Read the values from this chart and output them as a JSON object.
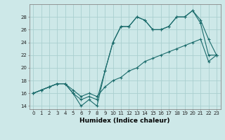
{
  "title": "",
  "xlabel": "Humidex (Indice chaleur)",
  "background_color": "#cde8e8",
  "grid_color": "#aacfcf",
  "line_color": "#1a6b6b",
  "hours": [
    0,
    1,
    2,
    3,
    4,
    5,
    6,
    7,
    8,
    9,
    10,
    11,
    12,
    13,
    14,
    15,
    16,
    17,
    18,
    19,
    20,
    21,
    22,
    23
  ],
  "series1": [
    16,
    16.5,
    17,
    17.5,
    17.5,
    16,
    14,
    15,
    14,
    19.5,
    24,
    26.5,
    26.5,
    28,
    27.5,
    26,
    26,
    26.5,
    28,
    28,
    29,
    27,
    22,
    22
  ],
  "series2": [
    16,
    16.5,
    17,
    17.5,
    17.5,
    16,
    15,
    15.5,
    15,
    19.5,
    24,
    26.5,
    26.5,
    28,
    27.5,
    26,
    26,
    26.5,
    28,
    28,
    29,
    27.5,
    24.5,
    22
  ],
  "series3": [
    16,
    16.5,
    17,
    17.5,
    17.5,
    16.5,
    15.5,
    16,
    15.5,
    17,
    18,
    18.5,
    19.5,
    20,
    21,
    21.5,
    22,
    22.5,
    23,
    23.5,
    24,
    24.5,
    21,
    22
  ],
  "ylim": [
    13.5,
    30
  ],
  "xlim": [
    -0.5,
    23.5
  ],
  "yticks": [
    14,
    16,
    18,
    20,
    22,
    24,
    26,
    28
  ],
  "xticks": [
    0,
    1,
    2,
    3,
    4,
    5,
    6,
    7,
    8,
    9,
    10,
    11,
    12,
    13,
    14,
    15,
    16,
    17,
    18,
    19,
    20,
    21,
    22,
    23
  ],
  "marker": "+",
  "marker_size": 3,
  "line_width": 0.8,
  "tick_fontsize": 5,
  "xlabel_fontsize": 6.5
}
